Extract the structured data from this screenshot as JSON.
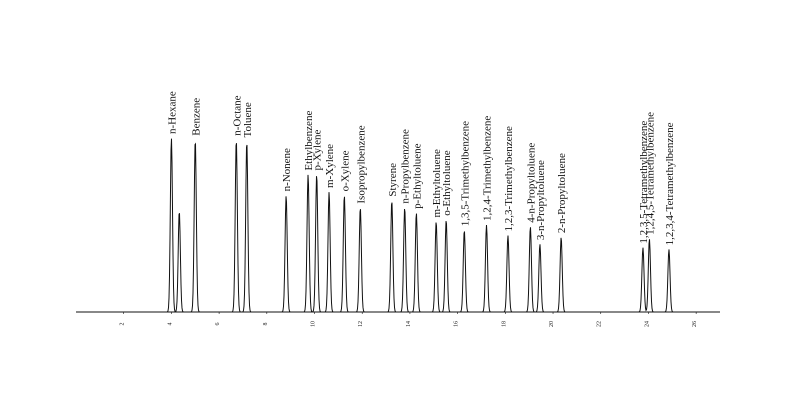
{
  "chart_data": {
    "type": "line",
    "title": "",
    "xlabel": "",
    "ylabel": "",
    "xlim": [
      0,
      27
    ],
    "tick_labels": [
      "2",
      "4",
      "6",
      "8",
      "10",
      "12",
      "14",
      "16",
      "18",
      "20",
      "22",
      "24",
      "26"
    ],
    "tick_values": [
      2,
      4,
      6,
      8,
      10,
      12,
      14,
      16,
      18,
      20,
      22,
      24,
      26
    ],
    "peaks": [
      {
        "name": "n-Hexane",
        "x": 4.0,
        "height": 1.0
      },
      {
        "name": "",
        "x": 4.33,
        "height": 0.58
      },
      {
        "name": "Benzene",
        "x": 5.0,
        "height": 0.99
      },
      {
        "name": "n-Octane",
        "x": 6.72,
        "height": 0.99
      },
      {
        "name": "Toluene",
        "x": 7.16,
        "height": 0.98
      },
      {
        "name": "n-Nonene",
        "x": 8.81,
        "height": 0.67
      },
      {
        "name": "Ethylbenzene",
        "x": 9.73,
        "height": 0.79
      },
      {
        "name": "p-Xylene",
        "x": 10.09,
        "height": 0.79
      },
      {
        "name": "m-Xylene",
        "x": 10.61,
        "height": 0.69
      },
      {
        "name": "o-Xylene",
        "x": 11.25,
        "height": 0.67
      },
      {
        "name": "Isopropylbenzene",
        "x": 11.92,
        "height": 0.6
      },
      {
        "name": "Styrene",
        "x": 13.24,
        "height": 0.64
      },
      {
        "name": "n-Propylbenzene",
        "x": 13.78,
        "height": 0.6
      },
      {
        "name": "p-Ethyltoluene",
        "x": 14.27,
        "height": 0.57
      },
      {
        "name": "m-Ethyltoluene",
        "x": 15.1,
        "height": 0.52
      },
      {
        "name": "o-Ethyltoluene",
        "x": 15.52,
        "height": 0.53
      },
      {
        "name": "1,3,5-Trimethylbenzene",
        "x": 16.28,
        "height": 0.47
      },
      {
        "name": "1,2,4-Trimethylbenzene",
        "x": 17.21,
        "height": 0.5
      },
      {
        "name": "1,2,3-Trimethylbenzene",
        "x": 18.11,
        "height": 0.44
      },
      {
        "name": "4-n-Propyltoluene",
        "x": 19.05,
        "height": 0.49
      },
      {
        "name": "3-n-Propyltoluene",
        "x": 19.45,
        "height": 0.39
      },
      {
        "name": "2-n-Propyltoluene",
        "x": 20.34,
        "height": 0.43
      },
      {
        "name": "1,2,3,5-Tetramethylbenzene",
        "x": 23.77,
        "height": 0.37
      },
      {
        "name": "1,2,4,5-Tetramethylbenzene",
        "x": 24.04,
        "height": 0.42
      },
      {
        "name": "1,2,3,4-Tetramethylbenzene",
        "x": 24.86,
        "height": 0.36
      }
    ],
    "grid": false,
    "legend": "none"
  }
}
